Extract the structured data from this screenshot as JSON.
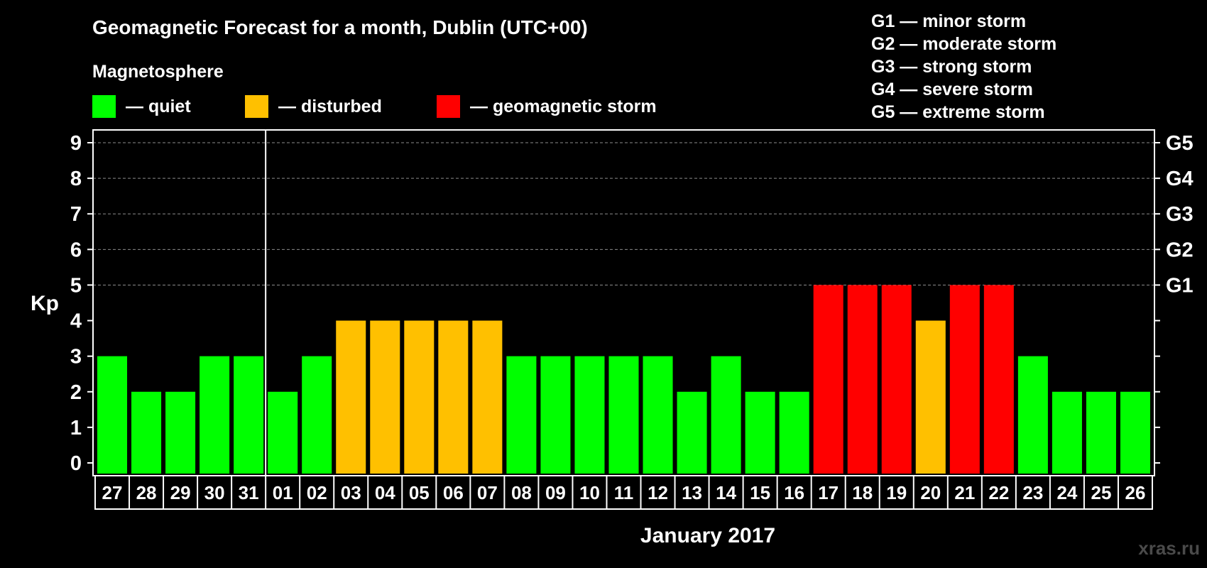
{
  "chart_data": {
    "type": "bar",
    "title": "Geomagnetic Forecast for a month, Dublin (UTC+00)",
    "legend_title": "Magnetosphere",
    "legend": [
      {
        "key": "quiet",
        "label": "— quiet",
        "color": "#00ff00"
      },
      {
        "key": "disturbed",
        "label": "— disturbed",
        "color": "#ffc000"
      },
      {
        "key": "storm",
        "label": "— geomagnetic storm",
        "color": "#ff0000"
      }
    ],
    "storm_scale": [
      "G1 — minor storm",
      "G2 — moderate storm",
      "G3 — strong storm",
      "G4 — severe storm",
      "G5 — extreme storm"
    ],
    "ylabel": "Kp",
    "ylim": [
      0,
      9
    ],
    "yticks": [
      "0",
      "1",
      "2",
      "3",
      "4",
      "5",
      "6",
      "7",
      "8",
      "9"
    ],
    "right_axis_labels": [
      {
        "kp": 5,
        "label": "G1"
      },
      {
        "kp": 6,
        "label": "G2"
      },
      {
        "kp": 7,
        "label": "G3"
      },
      {
        "kp": 8,
        "label": "G4"
      },
      {
        "kp": 9,
        "label": "G5"
      }
    ],
    "xlabel": "January 2017",
    "month_divider_after": "31",
    "categories": [
      "27",
      "28",
      "29",
      "30",
      "31",
      "01",
      "02",
      "03",
      "04",
      "05",
      "06",
      "07",
      "08",
      "09",
      "10",
      "11",
      "12",
      "13",
      "14",
      "15",
      "16",
      "17",
      "18",
      "19",
      "20",
      "21",
      "22",
      "23",
      "24",
      "25",
      "26"
    ],
    "values": [
      3,
      2,
      2,
      3,
      3,
      2,
      3,
      4,
      4,
      4,
      4,
      4,
      3,
      3,
      3,
      3,
      3,
      2,
      3,
      2,
      2,
      5,
      5,
      5,
      4,
      5,
      5,
      3,
      2,
      2,
      2
    ],
    "status": [
      "quiet",
      "quiet",
      "quiet",
      "quiet",
      "quiet",
      "quiet",
      "quiet",
      "disturbed",
      "disturbed",
      "disturbed",
      "disturbed",
      "disturbed",
      "quiet",
      "quiet",
      "quiet",
      "quiet",
      "quiet",
      "quiet",
      "quiet",
      "quiet",
      "quiet",
      "storm",
      "storm",
      "storm",
      "disturbed",
      "storm",
      "storm",
      "quiet",
      "quiet",
      "quiet",
      "quiet"
    ],
    "grid_dashed_from_kp": 5
  },
  "watermark": "xras.ru"
}
